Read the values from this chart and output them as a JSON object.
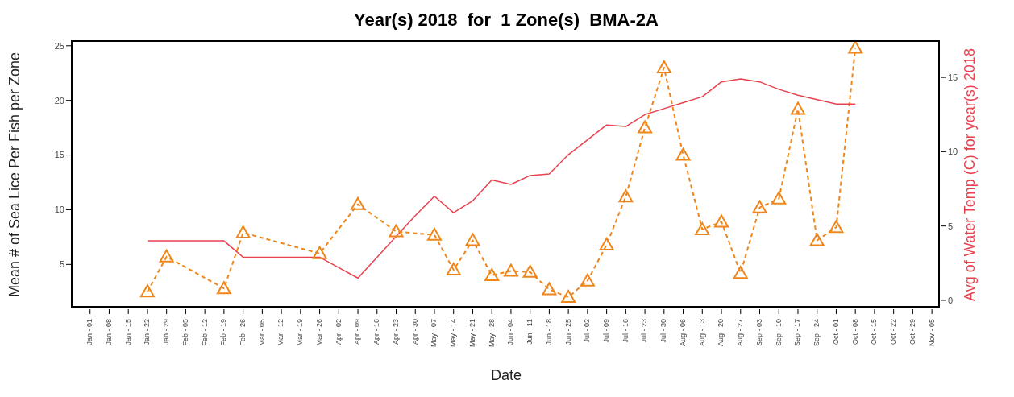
{
  "chart_data": {
    "type": "line",
    "title": "Year(s) 2018  for  1 Zone(s)  BMA-2A",
    "xlabel": "Date",
    "ylabel": "Mean # of Sea Lice Per Fish per Zone",
    "y2label": "Avg of Water Temp (C) for year(s) 2018",
    "categories": [
      "Jan - 01",
      "Jan - 08",
      "Jan - 15",
      "Jan - 22",
      "Jan - 29",
      "Feb - 05",
      "Feb - 12",
      "Feb - 19",
      "Feb - 26",
      "Mar - 05",
      "Mar - 12",
      "Mar - 19",
      "Mar - 26",
      "Apr - 02",
      "Apr - 09",
      "Apr - 16",
      "Apr - 23",
      "Apr - 30",
      "May - 07",
      "May - 14",
      "May - 21",
      "May - 28",
      "Jun - 04",
      "Jun - 11",
      "Jun - 18",
      "Jun - 25",
      "Jul - 02",
      "Jul - 09",
      "Jul - 16",
      "Jul - 23",
      "Jul - 30",
      "Aug - 06",
      "Aug - 13",
      "Aug - 20",
      "Aug - 27",
      "Sep - 03",
      "Sep - 10",
      "Sep - 17",
      "Sep - 24",
      "Oct - 01",
      "Oct - 08",
      "Oct - 15",
      "Oct - 22",
      "Oct - 29",
      "Nov - 05"
    ],
    "series": [
      {
        "color": "#f0861a",
        "marker": "triangle",
        "line_style": "dashed",
        "values": [
          null,
          null,
          null,
          2.5,
          5.7,
          null,
          null,
          2.8,
          7.9,
          null,
          null,
          null,
          6.0,
          null,
          10.5,
          null,
          8.0,
          null,
          7.7,
          4.5,
          7.2,
          4.0,
          4.4,
          4.3,
          2.7,
          2.0,
          3.5,
          6.8,
          11.2,
          17.5,
          23.0,
          15.0,
          8.2,
          8.9,
          4.2,
          10.2,
          11.0,
          19.2,
          7.2,
          8.4,
          24.8,
          null,
          null,
          null,
          null
        ]
      },
      {
        "color": "#e8424f",
        "axis": "y2",
        "marker": "none",
        "line_style": "solid",
        "values": [
          null,
          null,
          null,
          4.0,
          4.0,
          4.0,
          4.0,
          4.0,
          2.9,
          2.9,
          2.9,
          2.9,
          2.9,
          2.2,
          1.5,
          2.9,
          4.3,
          5.7,
          7.0,
          5.9,
          6.7,
          8.1,
          7.8,
          8.4,
          8.5,
          9.8,
          10.8,
          11.8,
          11.7,
          12.5,
          12.9,
          13.3,
          13.7,
          14.7,
          14.9,
          14.7,
          14.2,
          13.8,
          13.5,
          13.2,
          13.2,
          null,
          null,
          null,
          null
        ]
      }
    ],
    "ylim": [
      0.9,
      25.5
    ],
    "yticks": [
      5,
      10,
      15,
      20,
      25
    ],
    "y2lim": [
      -0.6,
      17.5
    ],
    "y2ticks": [
      0,
      5,
      10,
      15
    ]
  }
}
